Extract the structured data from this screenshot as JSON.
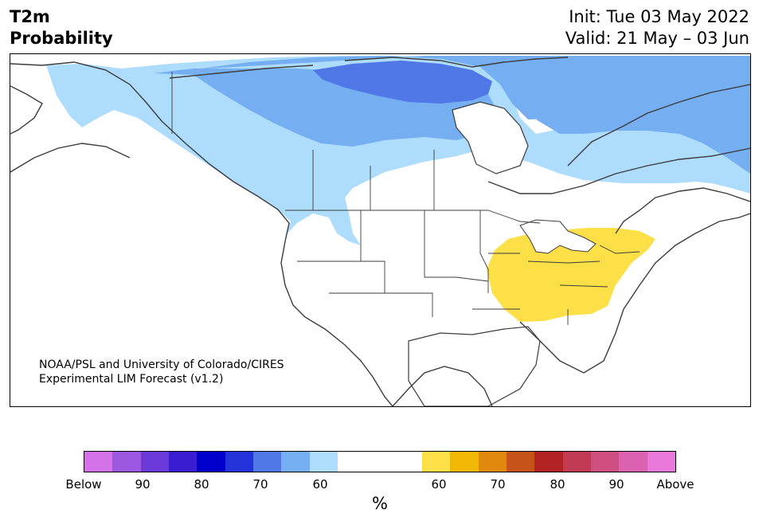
{
  "title": {
    "variable": "T2m",
    "subtitle": "Probability",
    "init": "Init: Tue 03 May 2022",
    "valid": "Valid: 21 May – 03 Jun"
  },
  "credit": {
    "line1": "NOAA/PSL and University of Colorado/CIRES",
    "line2": "Experimental LIM Forecast (v1.2)"
  },
  "colors": {
    "below": [
      "#d473e8",
      "#9e57e0",
      "#6b3ad8",
      "#3a1dd3",
      "#0000cc",
      "#2433d9",
      "#4f77e6",
      "#75aff2",
      "#addcfd"
    ],
    "neutral": "#ffffff",
    "above": [
      "#fde047",
      "#f2b705",
      "#df8a0f",
      "#c6541a",
      "#b22424",
      "#c23b55",
      "#cf5080",
      "#db62b0",
      "#e878da"
    ],
    "land_outline": "#3c3c3c"
  },
  "colorbar": {
    "ticks": [
      "Below",
      "90",
      "80",
      "70",
      "60",
      "60",
      "70",
      "80",
      "90",
      "Above"
    ],
    "unit": "%"
  },
  "regions": [
    {
      "name": "Northern Canada and Alaska",
      "category": "below",
      "level": "60"
    },
    {
      "name": "Hudson Bay and Canadian Arctic",
      "category": "below",
      "level": "70"
    },
    {
      "name": "Eastern Canada",
      "category": "below",
      "level": "60"
    },
    {
      "name": "Eastern United States",
      "category": "above",
      "level": "60"
    }
  ]
}
